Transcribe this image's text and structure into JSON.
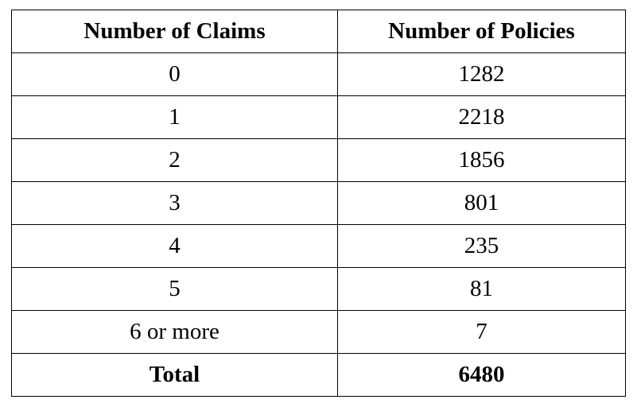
{
  "table": {
    "headers": [
      "Number of Claims",
      "Number of Policies"
    ],
    "rows": [
      [
        "0",
        "1282"
      ],
      [
        "1",
        "2218"
      ],
      [
        "2",
        "1856"
      ],
      [
        "3",
        "801"
      ],
      [
        "4",
        "235"
      ],
      [
        "5",
        "81"
      ],
      [
        "6 or more",
        "7"
      ]
    ],
    "total": [
      "Total",
      "6480"
    ]
  }
}
